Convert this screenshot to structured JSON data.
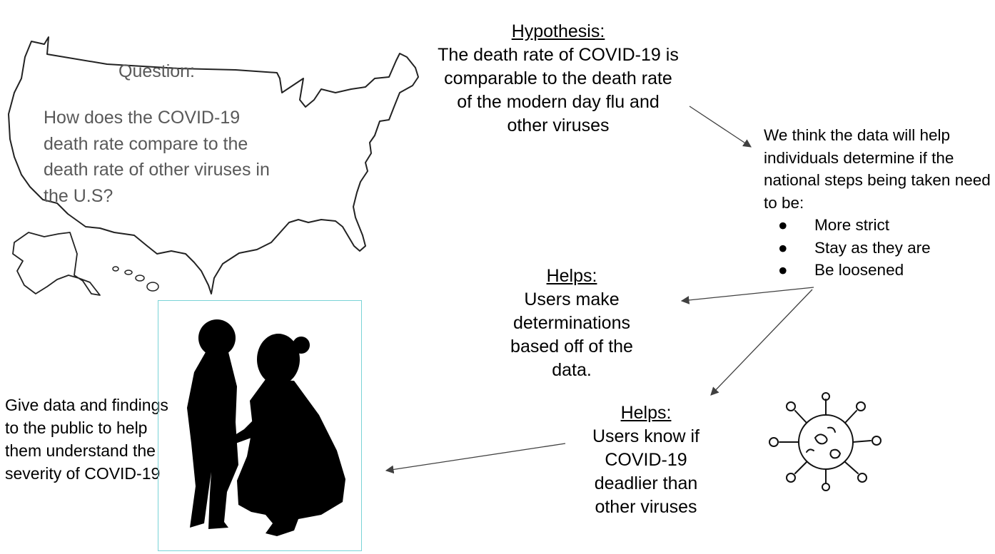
{
  "question": {
    "label": "Question:",
    "text": "How does the COVID-19 death rate compare to the death rate of other viruses in the U.S?"
  },
  "hypothesis": {
    "title": "Hypothesis:",
    "text": "The death rate of COVID-19 is comparable to the death rate of the modern day flu and other viruses"
  },
  "effect": {
    "intro": "We think the data will help individuals determine if the national steps being taken need to be:",
    "bullets": [
      "More strict",
      "Stay as they are",
      "Be loosened"
    ]
  },
  "helps1": {
    "title": "Helps:",
    "text": "Users make determinations based off of the data."
  },
  "helps2": {
    "title": "Helps:",
    "text": "Users know if COVID-19 deadlier than other viruses"
  },
  "give_data": {
    "text": "Give data and findings to the public to help them understand the severity of COVID-19"
  },
  "icons": {
    "map": "us-map-outline",
    "photo": "mother-child-silhouette",
    "virus": "virus-icon"
  },
  "colors": {
    "question_text": "#595959",
    "frame_border": "#79d3d6",
    "arrow": "#404040"
  }
}
